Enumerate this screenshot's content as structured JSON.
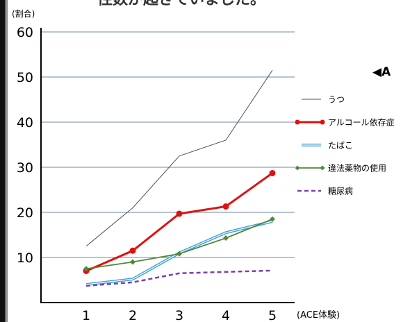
{
  "header_fragment": "性数が起きていました。",
  "side_note": "◀A",
  "chart_data": {
    "type": "line",
    "title": "",
    "ylabel": "(割合)",
    "xlabel": "(ACE体験)",
    "ylim": [
      0,
      60
    ],
    "yticks": [
      10,
      20,
      30,
      40,
      50,
      60
    ],
    "x": [
      1,
      2,
      3,
      4,
      5
    ],
    "grid": true,
    "legend_position": "right",
    "series": [
      {
        "name": "うつ",
        "values": [
          12.5,
          21,
          32.5,
          36,
          51.5
        ],
        "color": "#505050",
        "style": "thin"
      },
      {
        "name": "アルコール依存症",
        "values": [
          7,
          11.5,
          19.7,
          21.3,
          28.7
        ],
        "color": "#e01010",
        "style": "marker-circle"
      },
      {
        "name": "たばこ",
        "values": [
          4,
          5.2,
          11,
          15.5,
          18
        ],
        "color": "#3fa0d8",
        "style": "double"
      },
      {
        "name": "違法薬物の使用",
        "values": [
          7.5,
          9,
          10.8,
          14.3,
          18.5
        ],
        "color": "#4f8a3a",
        "style": "marker-diamond"
      },
      {
        "name": "糖尿病",
        "values": [
          3.7,
          4.5,
          6.5,
          6.8,
          7.1
        ],
        "color": "#7b3fa6",
        "style": "dashed"
      }
    ]
  }
}
